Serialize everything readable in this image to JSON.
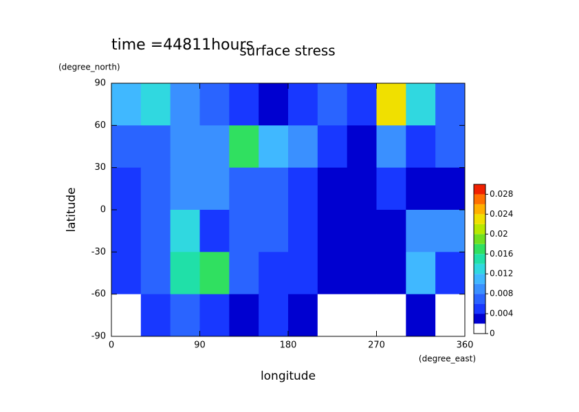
{
  "chart_data": {
    "type": "contour",
    "title": "surface stress",
    "subtitle": "time =44811hours",
    "x_label": "longitude",
    "x_unit": "(degree_east)",
    "y_label": "latitude",
    "y_unit": "(degree_north)",
    "xlim": [
      0,
      360
    ],
    "xticks": [
      0,
      90,
      180,
      270,
      360
    ],
    "ylim": [
      -90,
      90
    ],
    "yticks": [
      -90,
      -60,
      -30,
      0,
      30,
      60,
      90
    ],
    "x": [
      0,
      30,
      60,
      90,
      120,
      150,
      180,
      210,
      240,
      270,
      300,
      330,
      360
    ],
    "y": [
      90,
      60,
      30,
      0,
      -30,
      -60,
      -90
    ],
    "values": [
      [
        0.01,
        0.012,
        0.008,
        0.006,
        0.004,
        0.002,
        0.004,
        0.006,
        0.004,
        0.022,
        0.012,
        0.006
      ],
      [
        0.006,
        0.006,
        0.008,
        0.008,
        0.016,
        0.01,
        0.008,
        0.004,
        0.002,
        0.008,
        0.004,
        0.006
      ],
      [
        0.004,
        0.006,
        0.008,
        0.008,
        0.006,
        0.006,
        0.004,
        0.002,
        0.002,
        0.004,
        0.002,
        0.002
      ],
      [
        0.004,
        0.006,
        0.012,
        0.004,
        0.006,
        0.006,
        0.004,
        0.002,
        0.002,
        0.002,
        0.008,
        0.008
      ],
      [
        0.004,
        0.006,
        0.014,
        0.016,
        0.006,
        0.004,
        0.004,
        0.002,
        0.002,
        0.002,
        0.01,
        0.004
      ],
      [
        0,
        0.004,
        0.006,
        0.004,
        0.002,
        0.004,
        0.002,
        0,
        0,
        0,
        0.002,
        0
      ]
    ],
    "colorbar": {
      "levels": [
        0,
        0.002,
        0.004,
        0.006,
        0.008,
        0.01,
        0.012,
        0.014,
        0.016,
        0.018,
        0.02,
        0.022,
        0.024,
        0.026,
        0.028,
        0.03
      ],
      "colors": [
        "#ffffff",
        "#0000d0",
        "#1838ff",
        "#2a64ff",
        "#3a90ff",
        "#40b8ff",
        "#30d8e0",
        "#20e0a8",
        "#30e060",
        "#70e020",
        "#b8e800",
        "#f0e000",
        "#ffb000",
        "#ff7000",
        "#f02000"
      ],
      "ticks": [
        0,
        0.004,
        0.008,
        0.012,
        0.016,
        0.02,
        0.024,
        0.028
      ]
    }
  }
}
